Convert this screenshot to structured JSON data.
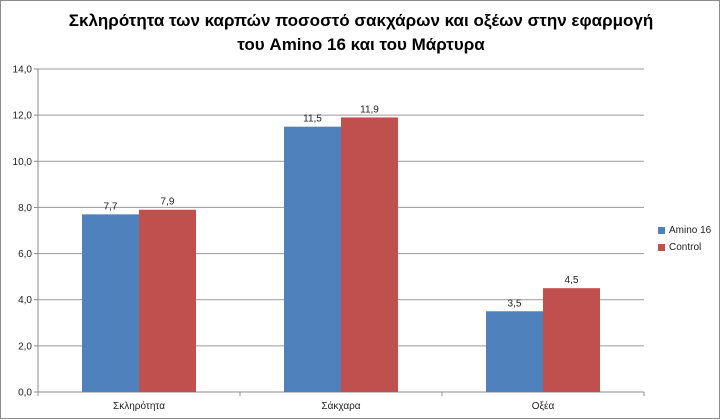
{
  "chart_data": {
    "type": "bar",
    "title_lines": [
      "Σκληρότητα των καρπών ποσοστό σακχάρων και οξέων στην εφαρμογή",
      "του Amino 16 και του Μάρτυρα"
    ],
    "categories": [
      "Σκληρότητα",
      "Σάκχαρα",
      "Οξέα"
    ],
    "series": [
      {
        "name": "Amino 16",
        "color": "#4f81bd",
        "values": [
          7.7,
          11.5,
          3.5
        ],
        "labels": [
          "7,7",
          "11,5",
          "3,5"
        ]
      },
      {
        "name": "Control",
        "color": "#c0504d",
        "values": [
          7.9,
          11.9,
          4.5
        ],
        "labels": [
          "7,9",
          "11,9",
          "4,5"
        ]
      }
    ],
    "y_ticks": [
      0,
      2,
      4,
      6,
      8,
      10,
      12,
      14
    ],
    "y_tick_labels": [
      "0,0",
      "2,0",
      "4,0",
      "6,0",
      "8,0",
      "10,0",
      "12,0",
      "14,0"
    ],
    "ylim": [
      0,
      14
    ],
    "grid": true,
    "legend_position": "right"
  }
}
